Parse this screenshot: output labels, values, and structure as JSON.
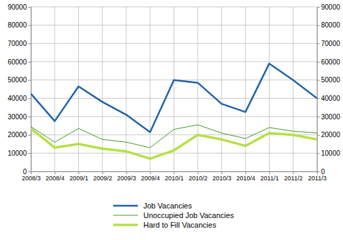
{
  "chart_data": {
    "type": "line",
    "categories": [
      "2008/3",
      "2008/4",
      "2009/1",
      "2009/2",
      "2009/3",
      "2009/4",
      "2010/1",
      "2010/2",
      "2010/3",
      "2010/4",
      "2011/1",
      "2011/2",
      "2011/3"
    ],
    "series": [
      {
        "name": "Job Vacancies",
        "color": "#1f62a8",
        "values": [
          42500,
          27500,
          46500,
          38000,
          31000,
          21500,
          50000,
          48500,
          37000,
          32500,
          59000,
          50000,
          40000
        ]
      },
      {
        "name": "Unoccupied Job Vacancies",
        "color": "#3f9a22",
        "values": [
          24500,
          16000,
          23500,
          17500,
          16000,
          13000,
          23000,
          25500,
          21000,
          18000,
          24000,
          22000,
          21000
        ]
      },
      {
        "name": "Hard to Fill Vacancies",
        "color": "#b6df45",
        "values": [
          23500,
          13000,
          15000,
          12500,
          11000,
          7000,
          11500,
          20000,
          17500,
          14000,
          21000,
          20000,
          17500
        ]
      }
    ],
    "ylim": [
      0,
      90000
    ],
    "yticks": [
      0,
      10000,
      20000,
      30000,
      40000,
      50000,
      60000,
      70000,
      80000,
      90000
    ],
    "grid": true,
    "legend": "bottom"
  }
}
